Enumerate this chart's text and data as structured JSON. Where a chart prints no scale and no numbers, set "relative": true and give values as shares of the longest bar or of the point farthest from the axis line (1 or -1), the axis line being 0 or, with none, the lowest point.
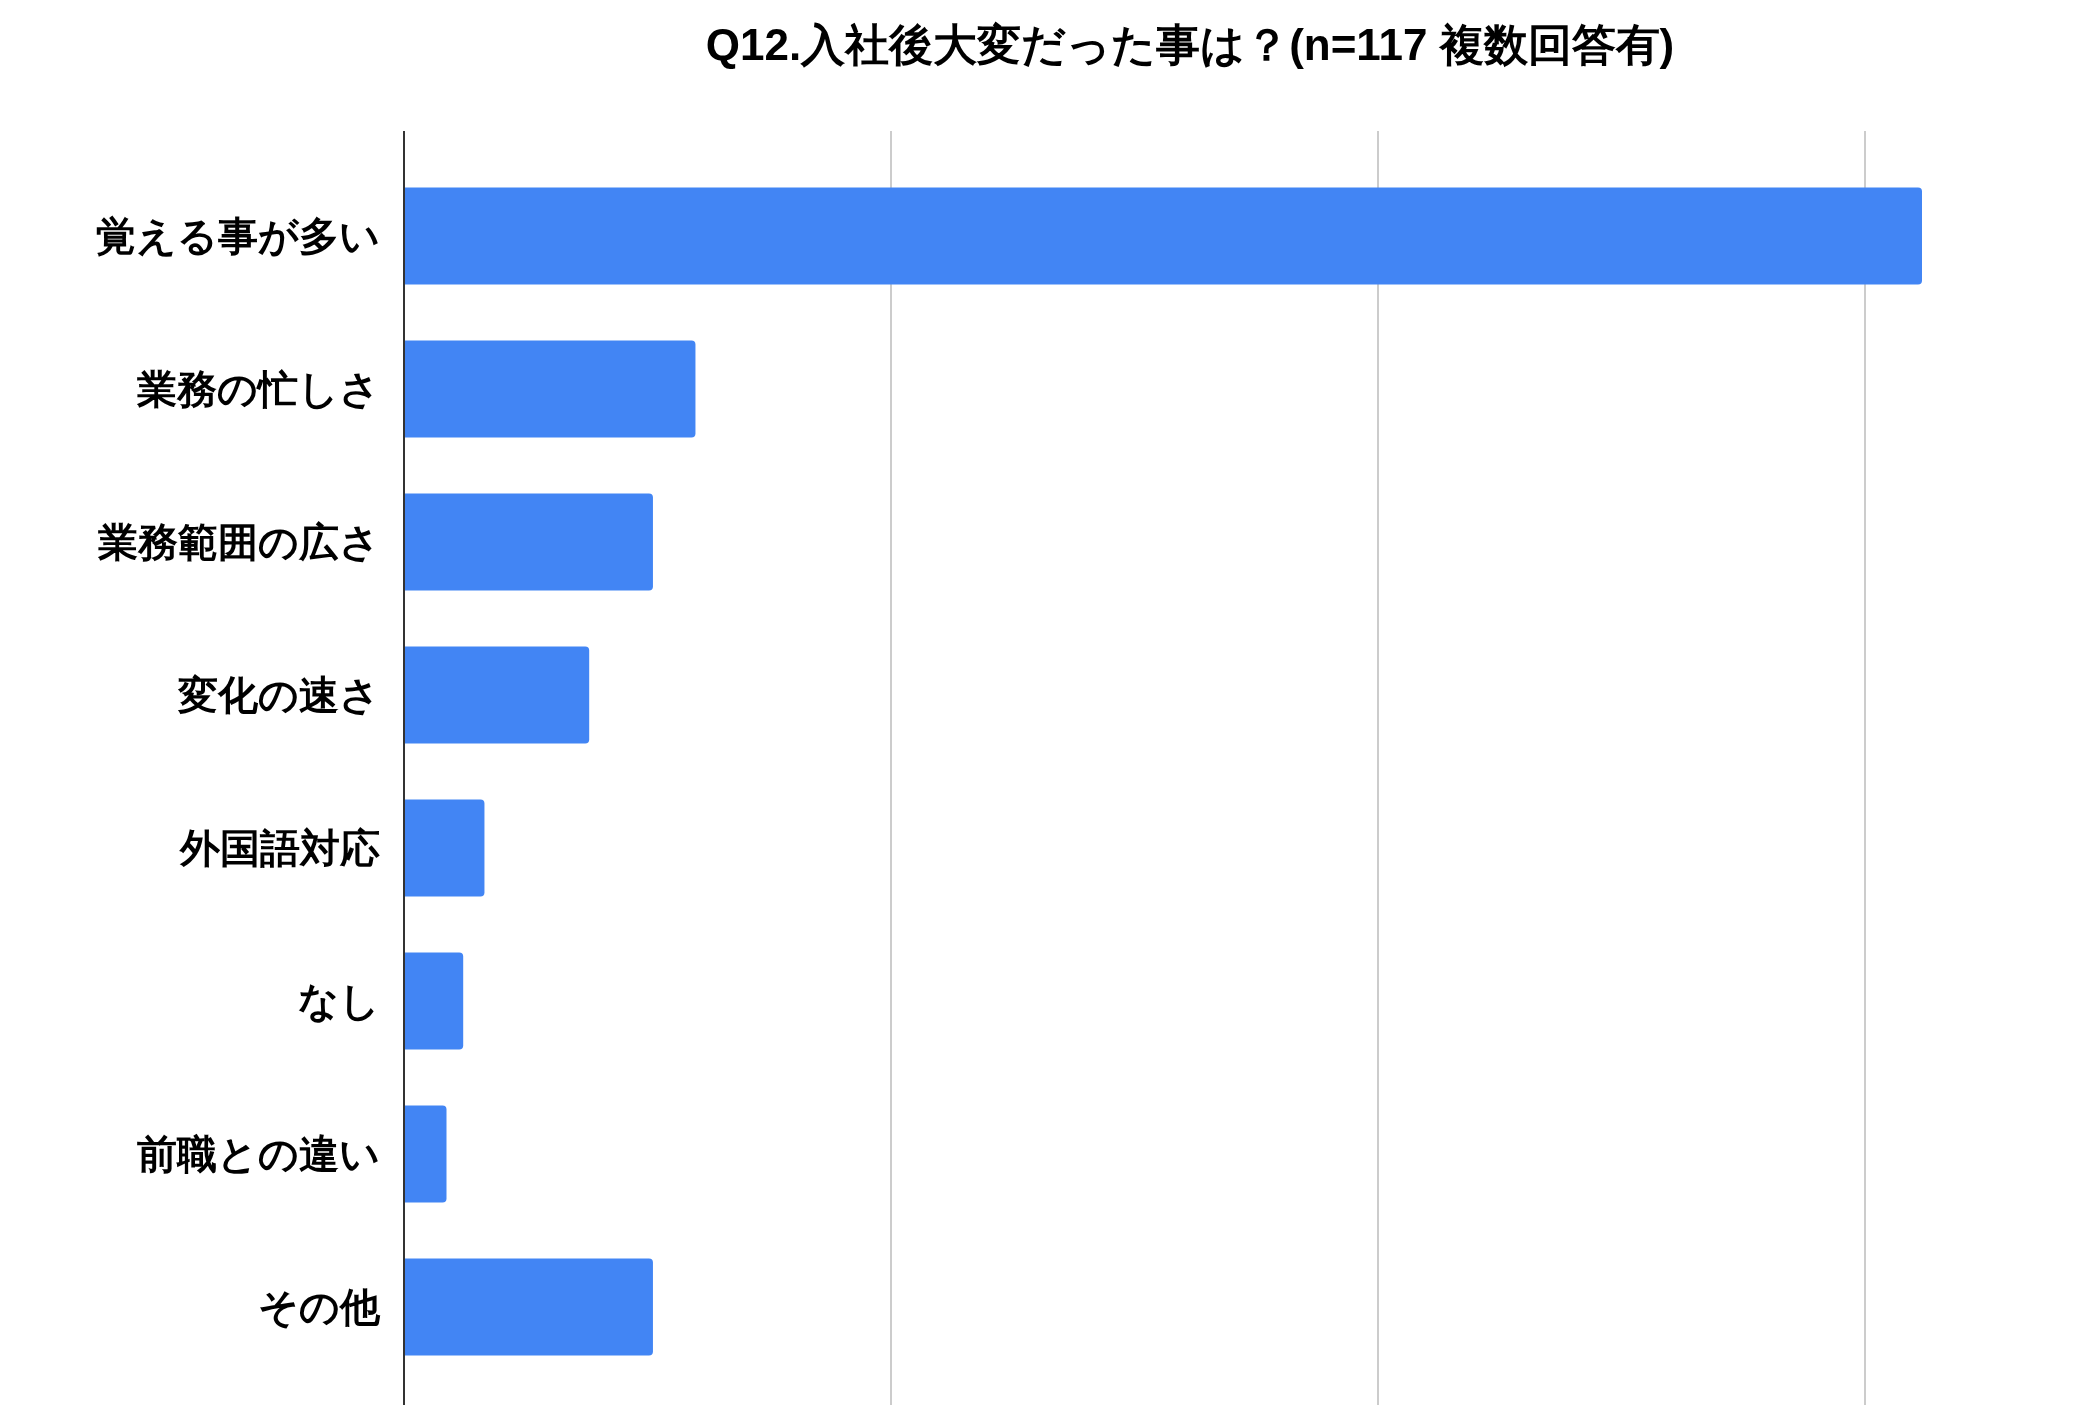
{
  "chart_data": {
    "type": "bar",
    "orientation": "horizontal",
    "relative": true,
    "title": "Q12.入社後大変だった事は？(n=117 複数回答有)",
    "categories": [
      "覚える事が多い",
      "業務の忙しさ",
      "業務範囲の広さ",
      "変化の速さ",
      "外国語対応",
      "なし",
      "前職との違い",
      "その他"
    ],
    "values": [
      1.0,
      0.192,
      0.164,
      0.122,
      0.053,
      0.039,
      0.028,
      0.164
    ],
    "color": "#4285f4",
    "grid": "x"
  }
}
